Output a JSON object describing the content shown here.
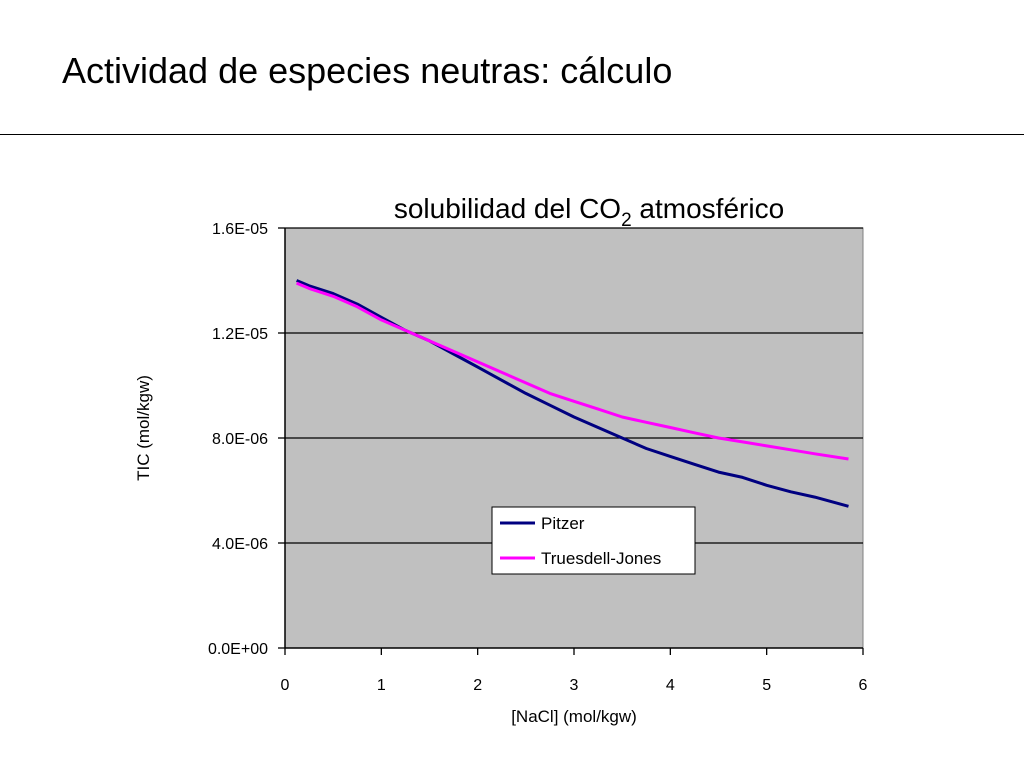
{
  "slide": {
    "title": "Actividad de especies neutras: cálculo"
  },
  "chart_data": {
    "type": "line",
    "title": "solubilidad del CO2 atmosférico",
    "title_parts": {
      "pre": "solubilidad del CO",
      "sub": "2",
      "post": " atmosférico"
    },
    "xlabel": "[NaCl] (mol/kgw)",
    "ylabel": "TIC (mol/kgw)",
    "xlim": [
      0,
      6
    ],
    "ylim": [
      0,
      1.6e-05
    ],
    "x_ticks": [
      0,
      1,
      2,
      3,
      4,
      5,
      6
    ],
    "x_tick_labels": [
      "0",
      "1",
      "2",
      "3",
      "4",
      "5",
      "6"
    ],
    "y_ticks": [
      0,
      4e-06,
      8e-06,
      1.2e-05,
      1.6e-05
    ],
    "y_tick_labels": [
      "0.0E+00",
      "4.0E-06",
      "8.0E-06",
      "1.2E-05",
      "1.6E-05"
    ],
    "grid": "horizontal",
    "plot_background": "#c0c0c0",
    "legend_position": "lower-center-right",
    "x": [
      0.12,
      0.25,
      0.5,
      0.75,
      1.0,
      1.25,
      1.5,
      1.75,
      2.0,
      2.25,
      2.5,
      2.75,
      3.0,
      3.25,
      3.5,
      3.75,
      4.0,
      4.25,
      4.5,
      4.75,
      5.0,
      5.25,
      5.5,
      5.85
    ],
    "series": [
      {
        "name": "Pitzer",
        "color": "#000080",
        "values": [
          1.4e-05,
          1.38e-05,
          1.35e-05,
          1.31e-05,
          1.26e-05,
          1.21e-05,
          1.17e-05,
          1.12e-05,
          1.07e-05,
          1.02e-05,
          9.7e-06,
          9.25e-06,
          8.8e-06,
          8.4e-06,
          8e-06,
          7.6e-06,
          7.3e-06,
          7e-06,
          6.7e-06,
          6.5e-06,
          6.2e-06,
          5.95e-06,
          5.75e-06,
          5.4e-06
        ]
      },
      {
        "name": "Truesdell-Jones",
        "color": "#ff00ff",
        "values": [
          1.39e-05,
          1.37e-05,
          1.34e-05,
          1.3e-05,
          1.25e-05,
          1.21e-05,
          1.17e-05,
          1.13e-05,
          1.09e-05,
          1.05e-05,
          1.01e-05,
          9.7e-06,
          9.4e-06,
          9.1e-06,
          8.8e-06,
          8.6e-06,
          8.4e-06,
          8.2e-06,
          8e-06,
          7.85e-06,
          7.7e-06,
          7.55e-06,
          7.4e-06,
          7.2e-06
        ]
      }
    ]
  }
}
